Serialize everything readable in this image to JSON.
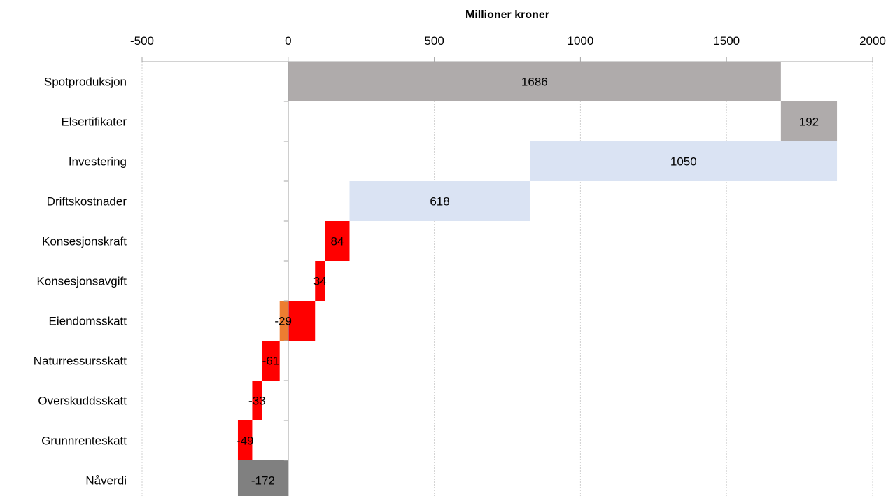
{
  "chart_data": {
    "type": "bar",
    "orientation": "horizontal",
    "subtype": "waterfall",
    "xlabel": "Millioner kroner",
    "xlabel_position": "top",
    "xlim": [
      -500,
      2000
    ],
    "xticks": [
      -500,
      0,
      500,
      1000,
      1500,
      2000
    ],
    "grid": "vertical-dotted",
    "categories": [
      "Spotproduksjon",
      "Elsertifikater",
      "Investering",
      "Driftskostnader",
      "Konsesjonskraft",
      "Konsesjonsavgift",
      "Eiendomsskatt",
      "Naturressursskatt",
      "Overskuddsskatt",
      "Grunnrenteskatt",
      "Nåverdi"
    ],
    "bars": [
      {
        "category": "Spotproduksjon",
        "start": 0,
        "end": 1686,
        "label": "1686",
        "color": "#afabab"
      },
      {
        "category": "Elsertifikater",
        "start": 1686,
        "end": 1878,
        "label": "192",
        "color": "#afabab"
      },
      {
        "category": "Investering",
        "start": 828,
        "end": 1878,
        "label": "1050",
        "color": "#dae3f3"
      },
      {
        "category": "Driftskostnader",
        "start": 210,
        "end": 828,
        "label": "618",
        "color": "#dae3f3"
      },
      {
        "category": "Konsesjonskraft",
        "start": 126,
        "end": 210,
        "label": "84",
        "color": "#ff0000"
      },
      {
        "category": "Konsesjonsavgift",
        "start": 92,
        "end": 126,
        "label": "34",
        "color": "#ff0000"
      },
      {
        "category": "Eiendomsskatt",
        "start": 0,
        "end": 92,
        "label": "-29",
        "color": "#ff0000",
        "extra": {
          "start": -29,
          "end": 0,
          "color": "#ed7d31"
        }
      },
      {
        "category": "Naturressursskatt",
        "start": -90,
        "end": -29,
        "label": "-61",
        "color": "#ff0000"
      },
      {
        "category": "Overskuddsskatt",
        "start": -123,
        "end": -90,
        "label": "-33",
        "color": "#ff0000"
      },
      {
        "category": "Grunnrenteskatt",
        "start": -172,
        "end": -123,
        "label": "-49",
        "color": "#ff0000"
      },
      {
        "category": "Nåverdi",
        "start": -172,
        "end": 0,
        "label": "-172",
        "color": "#808080"
      }
    ]
  }
}
